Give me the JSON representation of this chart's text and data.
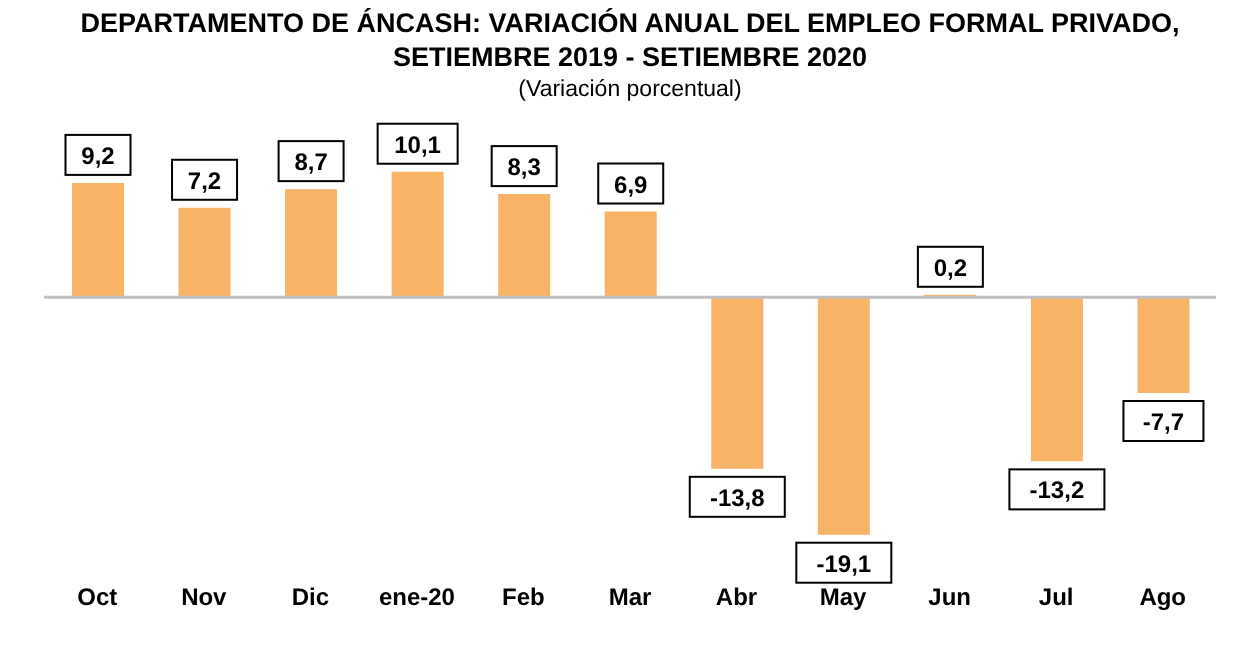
{
  "chart_data": {
    "type": "bar",
    "title": "DEPARTAMENTO DE ÁNCASH: VARIACIÓN ANUAL DEL EMPLEO FORMAL PRIVADO,\nSETIEMBRE 2019 - SETIEMBRE 2020",
    "subtitle": "(Variación porcentual)",
    "categories": [
      "Oct",
      "Nov",
      "Dic",
      "ene-20",
      "Feb",
      "Mar",
      "Abr",
      "May",
      "Jun",
      "Jul",
      "Ago"
    ],
    "values": [
      9.2,
      7.2,
      8.7,
      10.1,
      8.3,
      6.9,
      -13.8,
      -19.1,
      0.2,
      -13.2,
      -7.7
    ],
    "value_labels": [
      "9,2",
      "7,2",
      "8,7",
      "10,1",
      "8,3",
      "6,9",
      "-13,8",
      "-19,1",
      "0,2",
      "-13,2",
      "-7,7"
    ],
    "color": "#f9b367",
    "grid": false
  }
}
